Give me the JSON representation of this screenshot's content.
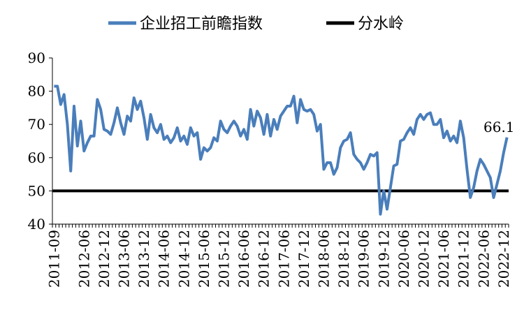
{
  "chart_data": {
    "type": "line",
    "ylim": [
      40,
      90
    ],
    "yticks": [
      40,
      50,
      60,
      70,
      80,
      90
    ],
    "xtick_labels": [
      "2011-09",
      "2012-06",
      "2012-12",
      "2013-06",
      "2013-12",
      "2014-06",
      "2014-12",
      "2015-06",
      "2015-12",
      "2016-06",
      "2016-12",
      "2017-06",
      "2017-12",
      "2018-06",
      "2018-12",
      "2019-06",
      "2019-12",
      "2020-06",
      "2020-12",
      "2021-06",
      "2021-12",
      "2022-06",
      "2022-12"
    ],
    "x_start": "2011-09",
    "legend_position": "top",
    "series": [
      {
        "name": "企业招工前瞻指数",
        "color": "#4a7ebb",
        "values": [
          81.5,
          81.5,
          76,
          79,
          70,
          56,
          75.5,
          63.5,
          71,
          62,
          64.5,
          66.5,
          66.5,
          77.5,
          74.5,
          68.5,
          68,
          67,
          70.5,
          75,
          70.5,
          67,
          72.5,
          71,
          78,
          74.5,
          77,
          72,
          65.5,
          73,
          69,
          67.5,
          70,
          65.5,
          66.5,
          64.5,
          66,
          69,
          65,
          66.5,
          64,
          69,
          66.5,
          67.5,
          59.5,
          63,
          62,
          63,
          66,
          65,
          71,
          68.5,
          67.5,
          69.5,
          71,
          69.5,
          66.5,
          68.5,
          65.5,
          74.5,
          69.5,
          74,
          72,
          67,
          73,
          66.5,
          71.5,
          68.5,
          72.5,
          74,
          75.5,
          75.5,
          78.5,
          70.5,
          77.5,
          74.5,
          74,
          74.5,
          73,
          68,
          70,
          56.5,
          58.5,
          58.5,
          55,
          57,
          63,
          65,
          65.5,
          67.5,
          61,
          59.5,
          58.5,
          56.5,
          58.5,
          61,
          60.5,
          61.5,
          43,
          50,
          44.5,
          51,
          57.5,
          58,
          65,
          65.5,
          67.5,
          69,
          67,
          71.5,
          73,
          71.5,
          73,
          73.5,
          70,
          70,
          71.5,
          66,
          68,
          65,
          66.5,
          64.5,
          71,
          66,
          56.5,
          48,
          51,
          56,
          59.5,
          58,
          56,
          54,
          48,
          52,
          56,
          61.5,
          66.1
        ]
      },
      {
        "name": "分水岭",
        "color": "#000000",
        "values": [
          50,
          50
        ]
      }
    ],
    "annotations": [
      {
        "text": "66.1"
      }
    ]
  }
}
